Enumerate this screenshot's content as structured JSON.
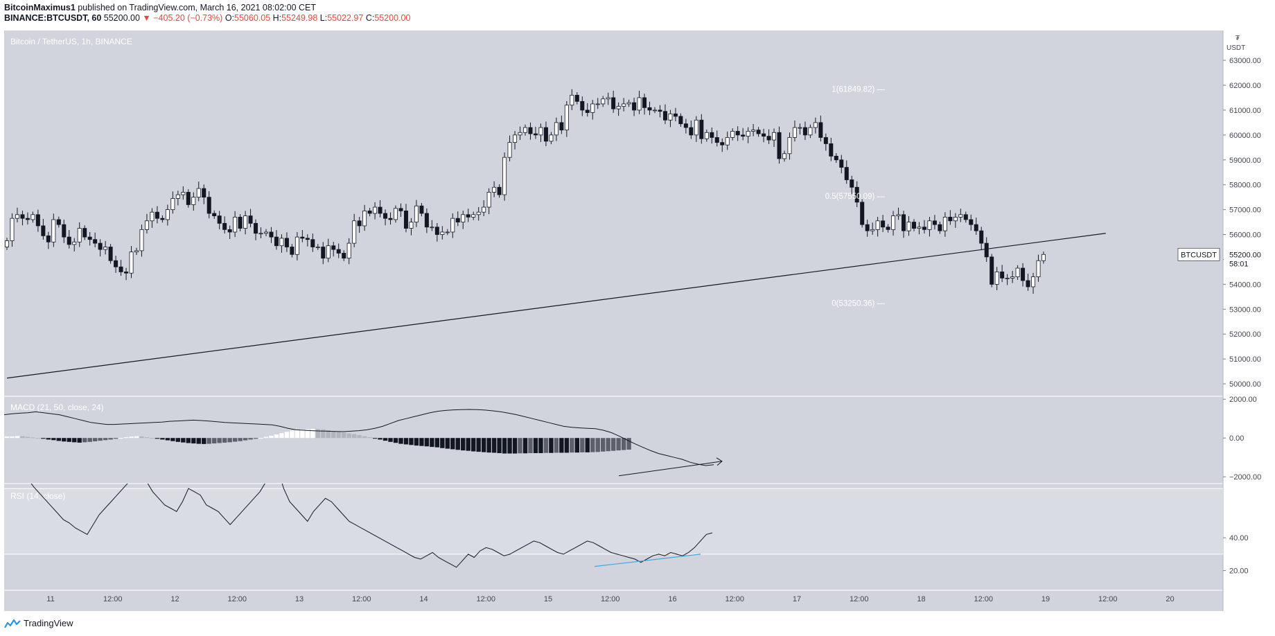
{
  "header": {
    "author": "BitcoinMaximus1",
    "published_text": "published on TradingView.com, March 16, 2021 08:02:00 CET",
    "symbol": "BINANCE:BTCUSDT, 60",
    "last": "55200.00",
    "change": "▼ −405.20 (−0.73%)",
    "o_label": "O:",
    "o_value": "55060.05",
    "h_label": "H:",
    "h_value": "55249.98",
    "l_label": "L:",
    "l_value": "55022.97",
    "c_label": "C:",
    "c_value": "55200.00"
  },
  "footer": {
    "brand": "TradingView"
  },
  "colors": {
    "panel_bg": "#d1d4dc",
    "rsi_band": "#dadce3",
    "up_body": "#ffffff",
    "down_body": "#131722",
    "axis_text": "#434651",
    "fib_text": "#ffffff",
    "rsi_divergence": "#3aa8dc"
  },
  "chart_data": [
    {
      "type": "candlestick",
      "title": "Bitcoin / TetherUS, 1h, BINANCE",
      "currency": "USDT",
      "x_tick_labels": [
        "11",
        "12:00",
        "12",
        "12:00",
        "13",
        "12:00",
        "14",
        "12:00",
        "15",
        "12:00",
        "16",
        "12:00",
        "17",
        "12:00",
        "18",
        "12:00",
        "19",
        "12:00",
        "20"
      ],
      "y_tick_labels": [
        "50000.00",
        "51000.00",
        "52000.00",
        "53000.00",
        "54000.00",
        "55000.00",
        "56000.00",
        "57000.00",
        "58000.00",
        "59000.00",
        "60000.00",
        "61000.00",
        "62000.00",
        "63000.00"
      ],
      "ylim": [
        49500,
        64200
      ],
      "price_label": {
        "symbol": "BTCUSDT",
        "value": "55200.00",
        "countdown": "58:01"
      },
      "fib_levels": [
        {
          "label": "1(61849.82)",
          "value": 61849.82
        },
        {
          "label": "0.5(57550.09)",
          "value": 57550.09
        },
        {
          "label": "0(53250.36)",
          "value": 53250.36
        }
      ],
      "trendline": {
        "start": {
          "x": "10 21:00",
          "y": 50230
        },
        "end": {
          "x": "19 17:00",
          "y": 56050
        }
      },
      "closes": [
        55750,
        56650,
        56800,
        56650,
        56600,
        56800,
        56350,
        55950,
        55700,
        56600,
        56400,
        55900,
        55600,
        55700,
        56250,
        55900,
        55800,
        55650,
        55400,
        55500,
        54950,
        54700,
        54500,
        54450,
        55300,
        55350,
        56200,
        56550,
        56900,
        56650,
        56600,
        57000,
        57450,
        57600,
        57700,
        57200,
        57500,
        57850,
        57500,
        56850,
        56750,
        56450,
        56200,
        56100,
        56700,
        56250,
        56750,
        56450,
        56050,
        56050,
        56100,
        55900,
        55550,
        55850,
        55500,
        55200,
        55900,
        55850,
        55800,
        55500,
        55500,
        55050,
        55550,
        55400,
        55250,
        55050,
        55650,
        56550,
        56350,
        56950,
        56850,
        57100,
        56850,
        56650,
        56600,
        57050,
        56950,
        56250,
        56500,
        57150,
        56850,
        56300,
        56300,
        56000,
        56100,
        56100,
        56650,
        56500,
        56800,
        56700,
        56800,
        56900,
        57100,
        57700,
        57900,
        57600,
        59100,
        59700,
        60000,
        60100,
        60300,
        60050,
        60000,
        60300,
        59750,
        60000,
        60500,
        60200,
        61200,
        61600,
        61350,
        61000,
        60900,
        61250,
        61250,
        61450,
        61500,
        61050,
        61150,
        61250,
        61300,
        61000,
        61500,
        61100,
        61000,
        61000,
        60950,
        60600,
        60850,
        60750,
        60450,
        60300,
        60000,
        60600,
        59850,
        60100,
        59900,
        59700,
        59600,
        59900,
        60150,
        60000,
        59950,
        60150,
        60200,
        60050,
        59950,
        59800,
        60100,
        59050,
        59250,
        59900,
        60300,
        60300,
        60000,
        60300,
        60500,
        59900,
        59650,
        59150,
        59000,
        58700,
        58200,
        57900,
        57300,
        56400,
        56150,
        56200,
        56550,
        56300,
        56200,
        56750,
        56800,
        56150,
        56500,
        56250,
        56300,
        56200,
        56550,
        56400,
        56150,
        56700,
        56550,
        56700,
        56800,
        56600,
        56400,
        56150,
        55650,
        55100,
        54000,
        54500,
        54250,
        54250,
        54300,
        54650,
        54150,
        53900,
        54300,
        54950,
        55200
      ],
      "opens_note": "open of each bar equals the previous bar's close"
    },
    {
      "type": "line",
      "title": "MACD (21, 50, close, 24)",
      "y_tick_labels": [
        "2000.00",
        "0.00",
        "−2000.00"
      ],
      "ylim": [
        -2350,
        2150
      ],
      "macd_line": [
        1200,
        1250,
        1280,
        1300,
        1350,
        1300,
        1250,
        1200,
        1100,
        1000,
        900,
        800,
        750,
        700,
        700,
        720,
        740,
        760,
        780,
        800,
        820,
        860,
        880,
        900,
        920,
        900,
        870,
        840,
        800,
        780,
        760,
        740,
        720,
        700,
        680,
        600,
        500,
        420,
        400,
        380,
        360,
        350,
        340,
        330,
        350,
        380,
        420,
        500,
        600,
        750,
        900,
        1000,
        1100,
        1200,
        1300,
        1380,
        1420,
        1450,
        1460,
        1470,
        1460,
        1440,
        1400,
        1350,
        1280,
        1200,
        1100,
        1000,
        900,
        800,
        700,
        600,
        550,
        520,
        500,
        480,
        400,
        280,
        100,
        -100,
        -300,
        -480,
        -650,
        -800,
        -900,
        -1000,
        -1100,
        -1250,
        -1350,
        -1420,
        -1380
      ],
      "signal_line": [
        -1950,
        -1200
      ],
      "histogram": [
        80,
        80,
        100,
        90,
        60,
        30,
        0,
        -40,
        -80,
        -110,
        -150,
        -180,
        -200,
        -220,
        -240,
        -220,
        -200,
        -170,
        -140,
        -110,
        -80,
        -40,
        0,
        40,
        70,
        90,
        80,
        40,
        0,
        -40,
        -80,
        -120,
        -160,
        -200,
        -230,
        -260,
        -280,
        -300,
        -310,
        -300,
        -280,
        -260,
        -240,
        -220,
        -190,
        -160,
        -120,
        -80,
        -40,
        0,
        60,
        120,
        180,
        250,
        320,
        380,
        420,
        440,
        460,
        470,
        460,
        440,
        400,
        360,
        320,
        280,
        240,
        200,
        150,
        90,
        40,
        -20,
        -80,
        -140,
        -200,
        -250,
        -300,
        -330,
        -360,
        -390,
        -410,
        -430,
        -460,
        -480,
        -520,
        -550,
        -580,
        -610,
        -640,
        -660,
        -690,
        -710,
        -730,
        -750,
        -760,
        -780,
        -800,
        -800,
        -800,
        -790,
        -790,
        -780,
        -780,
        -780,
        -770,
        -770,
        -760,
        -760,
        -760,
        -750,
        -750,
        -740,
        -740,
        -730,
        -720,
        -700,
        -680,
        -660,
        -640,
        -620,
        -600
      ]
    },
    {
      "type": "line",
      "title": "RSI (14, close)",
      "y_tick_labels": [
        "20.00",
        "40.00"
      ],
      "ylim": [
        8,
        73
      ],
      "band": [
        30,
        70
      ],
      "rsi": [
        76,
        71,
        67,
        63,
        59,
        55,
        51,
        49,
        46,
        44,
        42,
        48,
        54,
        58,
        62,
        66,
        70,
        74,
        78,
        82,
        74,
        68,
        64,
        60,
        58,
        56,
        62,
        70,
        68,
        66,
        60,
        58,
        56,
        52,
        48,
        52,
        56,
        60,
        64,
        68,
        74,
        78,
        82,
        70,
        62,
        58,
        54,
        50,
        56,
        60,
        64,
        62,
        58,
        54,
        50,
        48,
        46,
        44,
        42,
        40,
        38,
        36,
        34,
        32,
        30,
        28,
        27,
        29,
        31,
        28,
        26,
        24,
        22,
        26,
        30,
        28,
        32,
        34,
        33,
        31,
        29,
        30,
        32,
        34,
        36,
        38,
        37,
        35,
        33,
        31,
        30,
        32,
        34,
        36,
        38,
        37,
        35,
        33,
        31,
        30,
        29,
        28,
        27,
        25,
        27,
        29,
        30,
        29,
        31,
        30,
        29,
        31,
        34,
        38,
        42,
        43
      ],
      "divergence": {
        "start": 22.5,
        "end": 30
      }
    }
  ]
}
